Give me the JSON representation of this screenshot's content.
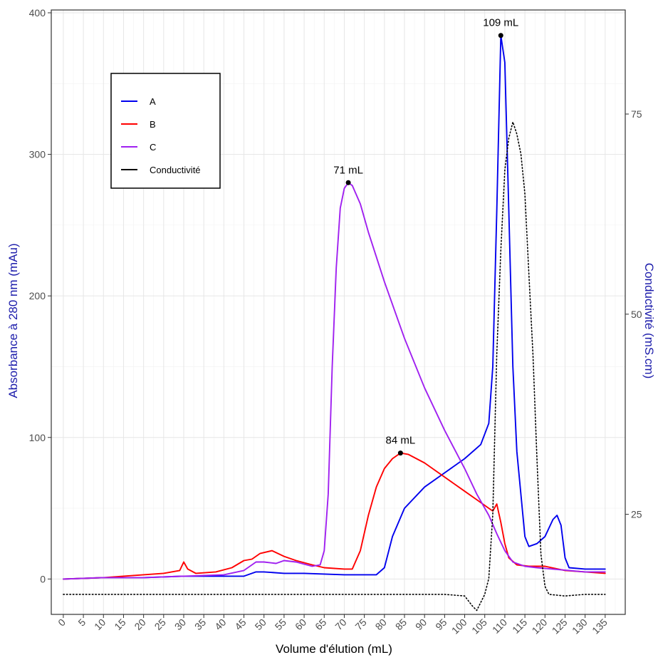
{
  "chart_data": {
    "type": "line",
    "xlabel": "Volume d'élution (mL)",
    "ylabel_left": "Absorbance à 280 nm (mAu)",
    "ylabel_right": "Conductivité (mS.cm)",
    "xlim": [
      -3,
      140
    ],
    "ylim_left": [
      -25,
      402
    ],
    "ylim_right": [
      12.5,
      88
    ],
    "x_ticks": [
      0,
      5,
      10,
      15,
      20,
      25,
      30,
      35,
      40,
      45,
      50,
      55,
      60,
      65,
      70,
      75,
      80,
      85,
      90,
      95,
      100,
      105,
      110,
      115,
      120,
      125,
      130,
      135
    ],
    "y_ticks_left": [
      0,
      100,
      200,
      300,
      400
    ],
    "y_ticks_right": [
      25,
      50,
      75
    ],
    "grid": true,
    "legend_position": "top-left",
    "colors": {
      "A": "#0000ee",
      "B": "#ff0000",
      "C": "#a020f0",
      "Conductivite": "#000000"
    },
    "series": [
      {
        "name": "A",
        "axis": "left",
        "style": "solid",
        "points": [
          [
            0,
            0
          ],
          [
            10,
            1
          ],
          [
            20,
            1
          ],
          [
            30,
            2
          ],
          [
            40,
            2
          ],
          [
            45,
            2
          ],
          [
            48,
            5
          ],
          [
            50,
            5
          ],
          [
            55,
            4
          ],
          [
            60,
            4
          ],
          [
            70,
            3
          ],
          [
            78,
            3
          ],
          [
            80,
            8
          ],
          [
            82,
            30
          ],
          [
            85,
            50
          ],
          [
            90,
            65
          ],
          [
            95,
            75
          ],
          [
            100,
            85
          ],
          [
            102,
            90
          ],
          [
            104,
            95
          ],
          [
            106,
            110
          ],
          [
            107,
            150
          ],
          [
            108,
            260
          ],
          [
            109,
            384
          ],
          [
            110,
            365
          ],
          [
            111,
            260
          ],
          [
            112,
            150
          ],
          [
            113,
            90
          ],
          [
            115,
            30
          ],
          [
            116,
            23
          ],
          [
            118,
            25
          ],
          [
            120,
            30
          ],
          [
            122,
            42
          ],
          [
            123,
            45
          ],
          [
            124,
            38
          ],
          [
            125,
            15
          ],
          [
            126,
            8
          ],
          [
            130,
            7
          ],
          [
            135,
            7
          ]
        ]
      },
      {
        "name": "B",
        "axis": "left",
        "style": "solid",
        "points": [
          [
            0,
            0
          ],
          [
            10,
            1
          ],
          [
            15,
            2
          ],
          [
            20,
            3
          ],
          [
            25,
            4
          ],
          [
            27,
            5
          ],
          [
            29,
            6
          ],
          [
            30,
            12
          ],
          [
            31,
            7
          ],
          [
            33,
            4
          ],
          [
            38,
            5
          ],
          [
            42,
            8
          ],
          [
            45,
            13
          ],
          [
            47,
            14
          ],
          [
            49,
            18
          ],
          [
            52,
            20
          ],
          [
            55,
            16
          ],
          [
            58,
            13
          ],
          [
            62,
            10
          ],
          [
            65,
            8
          ],
          [
            70,
            7
          ],
          [
            72,
            7
          ],
          [
            74,
            20
          ],
          [
            76,
            45
          ],
          [
            78,
            65
          ],
          [
            80,
            78
          ],
          [
            82,
            85
          ],
          [
            84,
            89
          ],
          [
            86,
            88
          ],
          [
            90,
            82
          ],
          [
            95,
            72
          ],
          [
            100,
            62
          ],
          [
            103,
            56
          ],
          [
            106,
            50
          ],
          [
            107,
            48
          ],
          [
            108,
            53
          ],
          [
            109,
            40
          ],
          [
            110,
            25
          ],
          [
            111,
            15
          ],
          [
            113,
            10
          ],
          [
            116,
            9
          ],
          [
            120,
            9
          ],
          [
            125,
            6
          ],
          [
            130,
            5
          ],
          [
            135,
            4
          ]
        ]
      },
      {
        "name": "C",
        "axis": "left",
        "style": "solid",
        "points": [
          [
            0,
            0
          ],
          [
            10,
            1
          ],
          [
            20,
            1
          ],
          [
            30,
            2
          ],
          [
            40,
            3
          ],
          [
            45,
            6
          ],
          [
            48,
            12
          ],
          [
            50,
            12
          ],
          [
            53,
            11
          ],
          [
            55,
            13
          ],
          [
            58,
            12
          ],
          [
            62,
            9
          ],
          [
            64,
            10
          ],
          [
            65,
            20
          ],
          [
            66,
            60
          ],
          [
            67,
            150
          ],
          [
            68,
            220
          ],
          [
            69,
            262
          ],
          [
            70,
            276
          ],
          [
            71,
            280
          ],
          [
            72,
            278
          ],
          [
            74,
            265
          ],
          [
            76,
            245
          ],
          [
            80,
            210
          ],
          [
            85,
            170
          ],
          [
            90,
            135
          ],
          [
            95,
            105
          ],
          [
            100,
            78
          ],
          [
            103,
            60
          ],
          [
            106,
            45
          ],
          [
            108,
            32
          ],
          [
            110,
            20
          ],
          [
            112,
            12
          ],
          [
            115,
            9
          ],
          [
            118,
            8
          ],
          [
            122,
            7
          ],
          [
            126,
            6
          ],
          [
            130,
            5
          ],
          [
            135,
            5
          ]
        ]
      },
      {
        "name": "Conductivité",
        "axis": "right",
        "style": "dotted",
        "points": [
          [
            0,
            15
          ],
          [
            20,
            15
          ],
          [
            40,
            15
          ],
          [
            60,
            15
          ],
          [
            80,
            15
          ],
          [
            95,
            15
          ],
          [
            100,
            14.8
          ],
          [
            102,
            13.5
          ],
          [
            103,
            13
          ],
          [
            104,
            14
          ],
          [
            105,
            15
          ],
          [
            106,
            17
          ],
          [
            107,
            25
          ],
          [
            108,
            45
          ],
          [
            109,
            58
          ],
          [
            110,
            68
          ],
          [
            111,
            72
          ],
          [
            112,
            74
          ],
          [
            113,
            72.5
          ],
          [
            114,
            70
          ],
          [
            115,
            65
          ],
          [
            116,
            55
          ],
          [
            117,
            45
          ],
          [
            118,
            32
          ],
          [
            119,
            20
          ],
          [
            120,
            16
          ],
          [
            121,
            15
          ],
          [
            125,
            14.8
          ],
          [
            130,
            15
          ],
          [
            135,
            15
          ]
        ]
      }
    ],
    "annotations": [
      {
        "series": "C",
        "x": 71,
        "y": 280,
        "label": "71 mL"
      },
      {
        "series": "B",
        "x": 84,
        "y": 89,
        "label": "84 mL"
      },
      {
        "series": "A",
        "x": 109,
        "y": 384,
        "label": "109 mL"
      }
    ]
  }
}
